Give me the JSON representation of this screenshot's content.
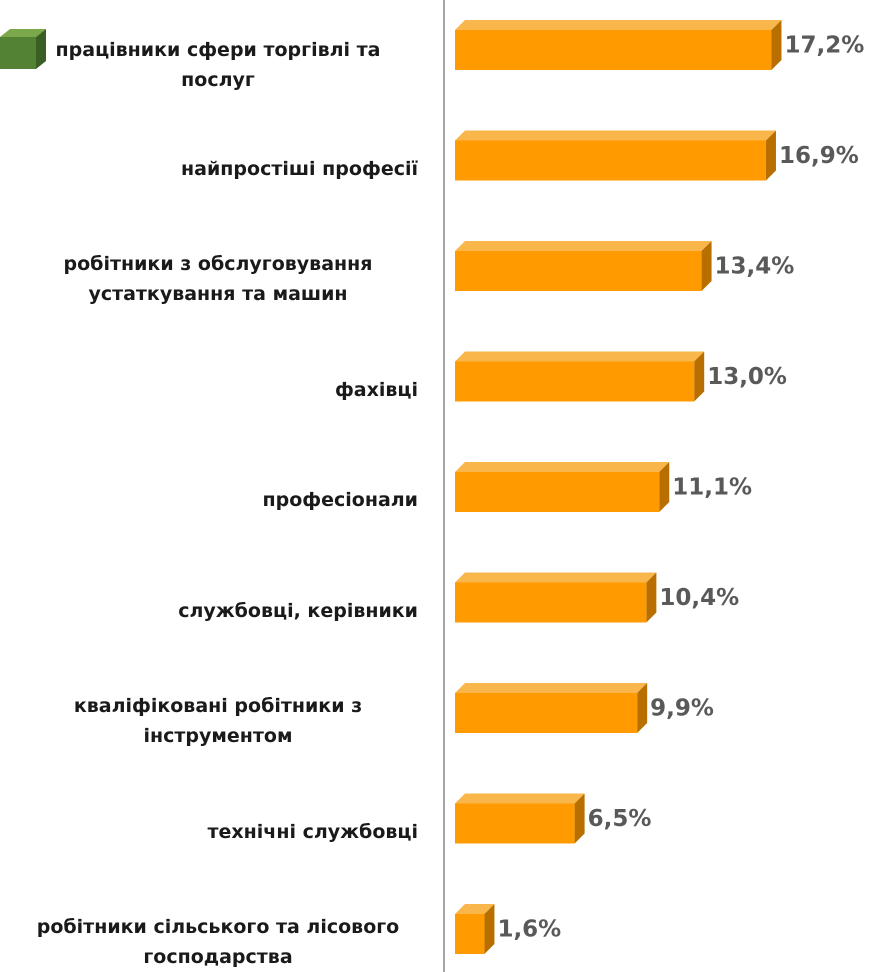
{
  "chart_data": {
    "type": "bar",
    "categories": [
      "працівники сфери торгівлі та послуг",
      "найпростіші професії",
      "робітники з обслуговування устаткування та машин",
      "фахівці",
      "професіонали",
      "службовці, керівники",
      "кваліфіковані робітники з інструментом",
      "технічні службовці",
      "робітники сільського та лісового господарства"
    ],
    "values": [
      17.2,
      16.9,
      13.4,
      13.0,
      11.1,
      10.4,
      9.9,
      6.5,
      1.6
    ],
    "value_labels": [
      "17,2%",
      "16,9%",
      "13,4%",
      "13,0%",
      "11,1%",
      "10,4%",
      "9,9%",
      "6,5%",
      "1,6%"
    ],
    "color": "#ff9a00",
    "xlim": [
      0,
      20
    ]
  }
}
